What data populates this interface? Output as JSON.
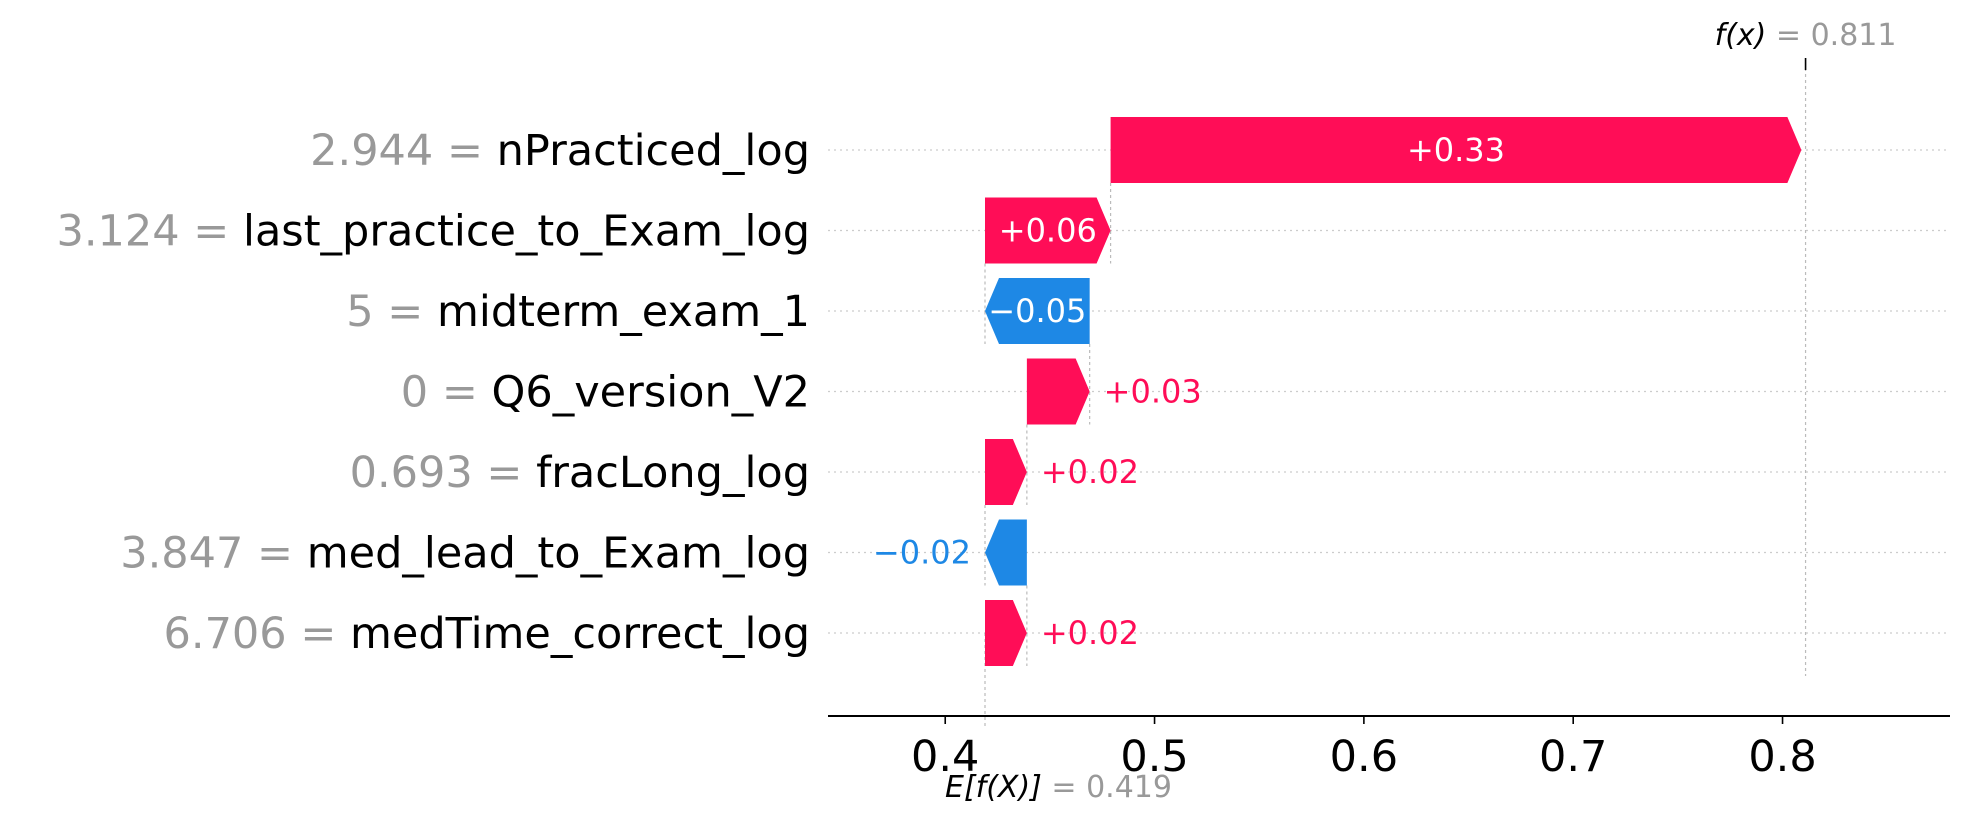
{
  "chart_data": {
    "type": "bar",
    "subtype": "waterfall",
    "features": [
      {
        "value": "2.944",
        "name": "nPracticed_log",
        "contribution": 0.33,
        "label": "+0.33"
      },
      {
        "value": "3.124",
        "name": "last_practice_to_Exam_log",
        "contribution": 0.06,
        "label": "+0.06"
      },
      {
        "value": "5",
        "name": "midterm_exam_1",
        "contribution": -0.05,
        "label": "−0.05"
      },
      {
        "value": "0",
        "name": "Q6_version_V2",
        "contribution": 0.03,
        "label": "+0.03"
      },
      {
        "value": "0.693",
        "name": "fracLong_log",
        "contribution": 0.02,
        "label": "+0.02"
      },
      {
        "value": "3.847",
        "name": "med_lead_to_Exam_log",
        "contribution": -0.02,
        "label": "−0.02"
      },
      {
        "value": "6.706",
        "name": "medTime_correct_log",
        "contribution": 0.02,
        "label": "+0.02"
      }
    ],
    "base_value": 0.419,
    "base_label": "E[f(X)]",
    "base_value_text": "= 0.419",
    "output_value": 0.811,
    "output_label": "f(x)",
    "output_value_text": "= 0.811",
    "xticks": [
      "0.4",
      "0.5",
      "0.6",
      "0.7",
      "0.8"
    ],
    "xtick_values": [
      0.4,
      0.5,
      0.6,
      0.7,
      0.8
    ],
    "xlim": [
      0.344,
      0.88
    ],
    "grid": "dotted horizontal row lines",
    "colors": {
      "positive": "#ff0d57",
      "negative": "#1e88e5",
      "feature_value": "#999999",
      "axis": "#000000"
    }
  }
}
